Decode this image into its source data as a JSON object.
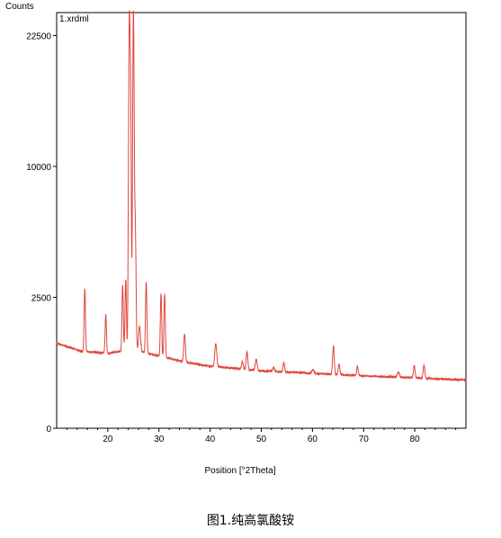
{
  "chart_data": {
    "type": "line",
    "file_label": "1.xrdml",
    "ylabel": "Counts",
    "xlabel": "Position [°2Theta]",
    "xlim": [
      10,
      90
    ],
    "ylim": [
      0,
      25200
    ],
    "y_scale": "sqrt",
    "x_ticks": [
      20,
      30,
      40,
      50,
      60,
      70,
      80
    ],
    "y_ticks": [
      0,
      2500,
      10000,
      22500
    ],
    "grid": false,
    "series": [
      {
        "color": "#e0443c",
        "background": [
          [
            10,
            1050
          ],
          [
            15,
            860
          ],
          [
            20,
            820
          ],
          [
            25,
            900
          ],
          [
            30,
            760
          ],
          [
            35,
            640
          ],
          [
            40,
            560
          ],
          [
            50,
            480
          ],
          [
            60,
            440
          ],
          [
            70,
            400
          ],
          [
            80,
            370
          ],
          [
            90,
            340
          ]
        ],
        "peaks": [
          [
            15.5,
            1950,
            0.12
          ],
          [
            19.6,
            1050,
            0.12
          ],
          [
            22.9,
            2100,
            0.12
          ],
          [
            23.5,
            2350,
            0.12
          ],
          [
            24.2,
            22600,
            0.13
          ],
          [
            24.45,
            14000,
            0.12
          ],
          [
            25.0,
            24400,
            0.13
          ],
          [
            25.35,
            5200,
            0.14
          ],
          [
            26.2,
            650,
            0.18
          ],
          [
            27.5,
            2300,
            0.12
          ],
          [
            30.4,
            1900,
            0.12
          ],
          [
            31.1,
            1900,
            0.12
          ],
          [
            35.0,
            650,
            0.15
          ],
          [
            41.1,
            500,
            0.18
          ],
          [
            46.3,
            150,
            0.15
          ],
          [
            47.2,
            350,
            0.15
          ],
          [
            49.0,
            200,
            0.18
          ],
          [
            52.4,
            60,
            0.2
          ],
          [
            54.4,
            160,
            0.15
          ],
          [
            60.1,
            60,
            0.2
          ],
          [
            64.1,
            550,
            0.15
          ],
          [
            65.2,
            180,
            0.15
          ],
          [
            68.8,
            150,
            0.15
          ],
          [
            76.8,
            80,
            0.2
          ],
          [
            79.9,
            200,
            0.15
          ],
          [
            81.8,
            220,
            0.15
          ]
        ]
      }
    ]
  },
  "caption": "图1.纯高氯酸铵"
}
